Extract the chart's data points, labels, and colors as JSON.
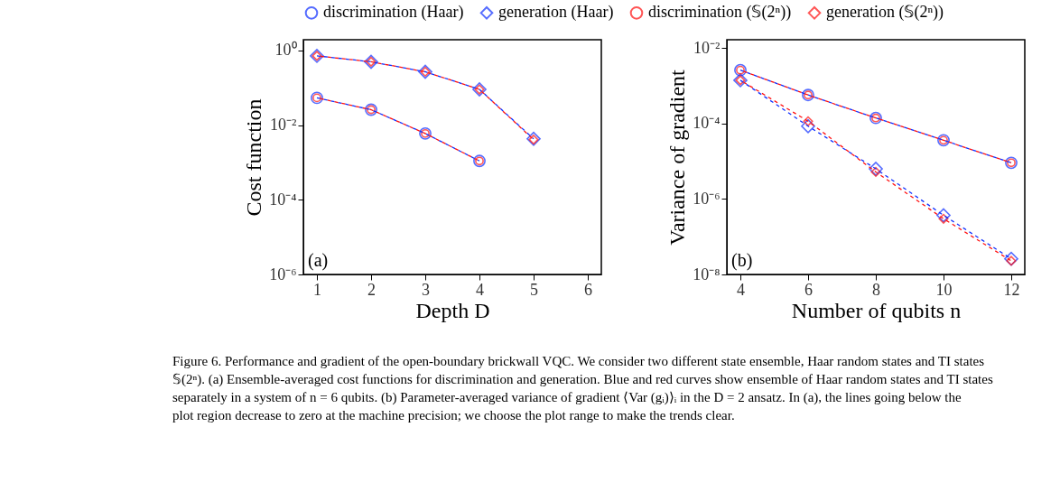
{
  "chart_data": [
    {
      "type": "line",
      "xlabel": "Depth D",
      "ylabel": "Cost function",
      "log": "y",
      "grid": false,
      "legend": "top",
      "line_style": "dashed",
      "x": [
        1,
        2,
        3,
        4,
        5
      ],
      "xlim": [
        0.75,
        6.25
      ],
      "xticks": [
        1,
        2,
        3,
        4,
        5,
        6
      ],
      "ylim": [
        1e-06,
        1.95
      ],
      "yticks": [
        {
          "value": 1,
          "label": "10⁰"
        },
        {
          "value": 0.01,
          "label": "10⁻²"
        },
        {
          "value": 0.0001,
          "label": "10⁻⁴"
        },
        {
          "value": 1e-06,
          "label": "10⁻⁶"
        }
      ],
      "annotations": [
        "(a)"
      ],
      "series": [
        {
          "name": "discrimination (Haar)",
          "color": "#1030ff",
          "marker": "circle",
          "values": [
            0.054,
            0.026,
            0.006,
            0.0011,
            null
          ]
        },
        {
          "name": "generation (Haar)",
          "color": "#1030ff",
          "marker": "diamond",
          "values": [
            0.72,
            0.5,
            0.27,
            0.091,
            0.0043
          ]
        },
        {
          "name": "discrimination (𝕊(2ⁿ))",
          "color": "#ff1010",
          "marker": "circle",
          "values": [
            0.054,
            0.026,
            0.006,
            0.0011,
            null
          ]
        },
        {
          "name": "generation (𝕊(2ⁿ))",
          "color": "#ff1010",
          "marker": "diamond",
          "values": [
            0.72,
            0.5,
            0.27,
            0.091,
            0.0041
          ]
        }
      ]
    },
    {
      "type": "line",
      "xlabel": "Number of qubits n",
      "ylabel": "Variance of gradient",
      "log": "y",
      "grid": false,
      "line_style": "dashed",
      "x": [
        4,
        6,
        8,
        10,
        12
      ],
      "xlim": [
        3.6,
        12.4
      ],
      "xticks": [
        4,
        6,
        8,
        10,
        12
      ],
      "ylim": [
        1e-08,
        0.0166
      ],
      "yticks": [
        {
          "value": 0.01,
          "label": "10⁻²"
        },
        {
          "value": 0.0001,
          "label": "10⁻⁴"
        },
        {
          "value": 1e-06,
          "label": "10⁻⁶"
        },
        {
          "value": 1e-08,
          "label": "10⁻⁸"
        }
      ],
      "annotations": [
        "(b)",
        "Figure 6.  Performance and gradient of the open-boundary brickwall VQC. We consider two different state ensemble, Haar random states and TI states 𝕊(2ⁿ). (a) Ensemble-averaged cost functions for discrimination and generation. Blue and red curves show ensemble of Haar random states and TI states separately in a system of n = 6 qubits. (b) Parameter-averaged variance of gradient ⟨Var (gᵢ)⟩ᵢ in the D = 2 ansatz. In (a), the lines going below the plot region decrease to zero at the machine precision; we choose the plot range to make the trends clear."
      ],
      "series": [
        {
          "name": "discrimination (Haar)",
          "color": "#1030ff",
          "marker": "circle",
          "values": [
            0.0026,
            0.00057,
            0.00014,
            3.6e-05,
            9.1e-06
          ]
        },
        {
          "name": "generation (Haar)",
          "color": "#1030ff",
          "marker": "diamond",
          "values": [
            0.0014,
            8.5e-05,
            6.3e-06,
            3.7e-07,
            2.6e-08
          ]
        },
        {
          "name": "discrimination (𝕊(2ⁿ))",
          "color": "#ff1010",
          "marker": "circle",
          "values": [
            0.0026,
            0.00057,
            0.00014,
            3.6e-05,
            9.1e-06
          ]
        },
        {
          "name": "generation (𝕊(2ⁿ))",
          "color": "#ff1010",
          "marker": "diamond",
          "values": [
            0.0014,
            0.000115,
            5.2e-06,
            3e-07,
            2.3e-08
          ]
        }
      ]
    }
  ]
}
